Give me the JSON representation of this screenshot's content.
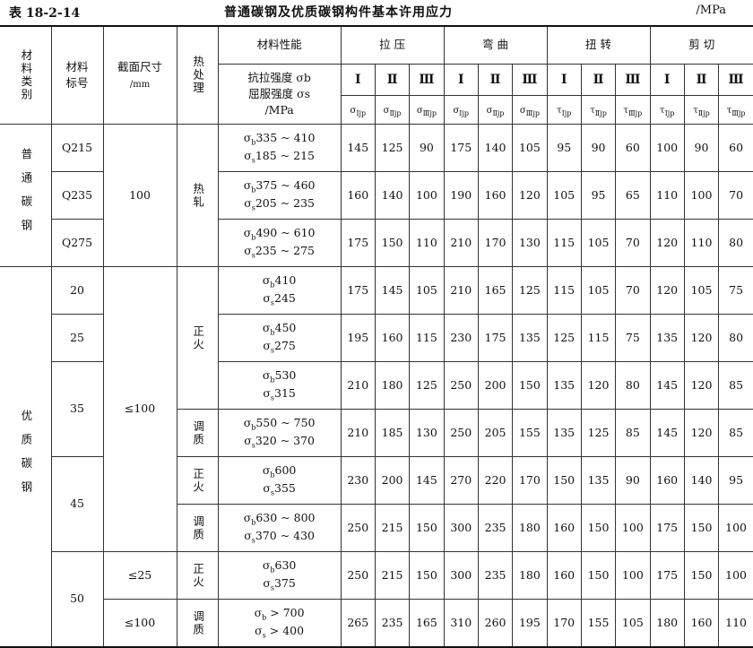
{
  "table_no": "表 18-2-14",
  "title": "普通碳钢及优质碳钢构件基本许用应力",
  "unit": "/MPa",
  "headers": {
    "category": "材料类别",
    "grade": "材料标号",
    "size": "截面尺寸",
    "size_unit": "/mm",
    "heat": "热处理",
    "props": "材料性能",
    "props_sub": [
      "抗拉强度 σb",
      "屈服强度 σs",
      "/MPa"
    ],
    "groups": [
      "拉  压",
      "弯  曲",
      "扭  转",
      "剪  切"
    ],
    "levels": [
      "Ⅰ",
      "Ⅱ",
      "Ⅲ",
      "Ⅰ",
      "Ⅱ",
      "Ⅲ",
      "Ⅰ",
      "Ⅱ",
      "Ⅲ",
      "Ⅰ",
      "Ⅱ",
      "Ⅲ"
    ],
    "symbols": [
      {
        "s": "σ",
        "sub": "Ⅰjp"
      },
      {
        "s": "σ",
        "sub": "Ⅱjp"
      },
      {
        "s": "σ",
        "sub": "Ⅲjp"
      },
      {
        "s": "σ",
        "sub": "Ⅰjp"
      },
      {
        "s": "σ",
        "sub": "Ⅱjp"
      },
      {
        "s": "σ",
        "sub": "Ⅲjp"
      },
      {
        "s": "τ",
        "sub": "Ⅰjp"
      },
      {
        "s": "τ",
        "sub": "Ⅱjp"
      },
      {
        "s": "τ",
        "sub": "Ⅲjp"
      },
      {
        "s": "τ",
        "sub": "Ⅰjp"
      },
      {
        "s": "τ",
        "sub": "Ⅱjp"
      },
      {
        "s": "τ",
        "sub": "Ⅲjp"
      }
    ]
  },
  "categories": [
    "普通碳钢",
    "优质碳钢"
  ],
  "sizes": [
    "100",
    "≤100",
    "≤25",
    "≤100"
  ],
  "heats": [
    "热轧",
    "正火",
    "调质",
    "正火",
    "调质",
    "正火",
    "调质"
  ],
  "grades": [
    "Q215",
    "Q235",
    "Q275",
    "20",
    "25",
    "35",
    "45",
    "50"
  ],
  "sigma": "σ",
  "sub_b": "b",
  "sub_s": "s",
  "rows": [
    {
      "b": "335 ~ 410",
      "s": "185 ~ 215",
      "v": [
        "145",
        "125",
        "90",
        "175",
        "140",
        "105",
        "95",
        "90",
        "60",
        "100",
        "90",
        "60"
      ]
    },
    {
      "b": "375 ~ 460",
      "s": "205 ~ 235",
      "v": [
        "160",
        "140",
        "100",
        "190",
        "160",
        "120",
        "105",
        "95",
        "65",
        "110",
        "100",
        "70"
      ]
    },
    {
      "b": "490 ~ 610",
      "s": "235 ~ 275",
      "v": [
        "175",
        "150",
        "110",
        "210",
        "170",
        "130",
        "115",
        "105",
        "70",
        "120",
        "110",
        "80"
      ]
    },
    {
      "b": "410",
      "s": "245",
      "v": [
        "175",
        "145",
        "105",
        "210",
        "165",
        "125",
        "115",
        "105",
        "70",
        "120",
        "105",
        "75"
      ]
    },
    {
      "b": "450",
      "s": "275",
      "v": [
        "195",
        "160",
        "115",
        "230",
        "175",
        "135",
        "125",
        "115",
        "75",
        "135",
        "120",
        "80"
      ]
    },
    {
      "b": "530",
      "s": "315",
      "v": [
        "210",
        "180",
        "125",
        "250",
        "200",
        "150",
        "135",
        "120",
        "80",
        "145",
        "120",
        "85"
      ]
    },
    {
      "b": "550 ~ 750",
      "s": "320 ~ 370",
      "v": [
        "210",
        "185",
        "130",
        "250",
        "205",
        "155",
        "135",
        "125",
        "85",
        "145",
        "120",
        "85"
      ]
    },
    {
      "b": "600",
      "s": "355",
      "v": [
        "230",
        "200",
        "145",
        "270",
        "220",
        "170",
        "150",
        "135",
        "90",
        "160",
        "140",
        "95"
      ]
    },
    {
      "b": "630 ~ 800",
      "s": "370 ~ 430",
      "v": [
        "250",
        "215",
        "150",
        "300",
        "235",
        "180",
        "160",
        "150",
        "100",
        "175",
        "150",
        "100"
      ]
    },
    {
      "b": "630",
      "s": "375",
      "v": [
        "250",
        "215",
        "150",
        "300",
        "235",
        "180",
        "160",
        "150",
        "100",
        "175",
        "150",
        "100"
      ]
    },
    {
      "b": " > 700",
      "s": " > 400",
      "v": [
        "265",
        "235",
        "165",
        "310",
        "260",
        "195",
        "170",
        "155",
        "105",
        "180",
        "160",
        "110"
      ]
    }
  ]
}
